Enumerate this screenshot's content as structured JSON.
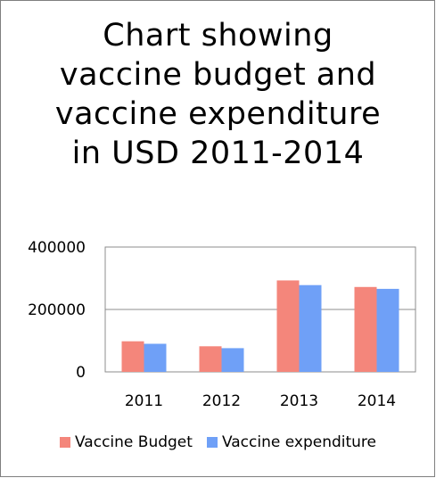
{
  "chart_data": {
    "type": "bar",
    "title_lines": [
      "Chart showing",
      "vaccine budget and",
      "vaccine expenditure",
      "in USD 2011-2014"
    ],
    "categories": [
      "2011",
      "2012",
      "2013",
      "2014"
    ],
    "series": [
      {
        "name": "Vaccine Budget",
        "color": "#f4867b",
        "values": [
          98000,
          82000,
          293000,
          272000
        ]
      },
      {
        "name": "Vaccine expenditure",
        "color": "#6fa0f7",
        "values": [
          90000,
          76000,
          278000,
          266000
        ]
      }
    ],
    "y_ticks": [
      "400000",
      "200000",
      "0"
    ],
    "ylim": [
      0,
      400000
    ],
    "grid": true,
    "legend_position": "bottom"
  }
}
